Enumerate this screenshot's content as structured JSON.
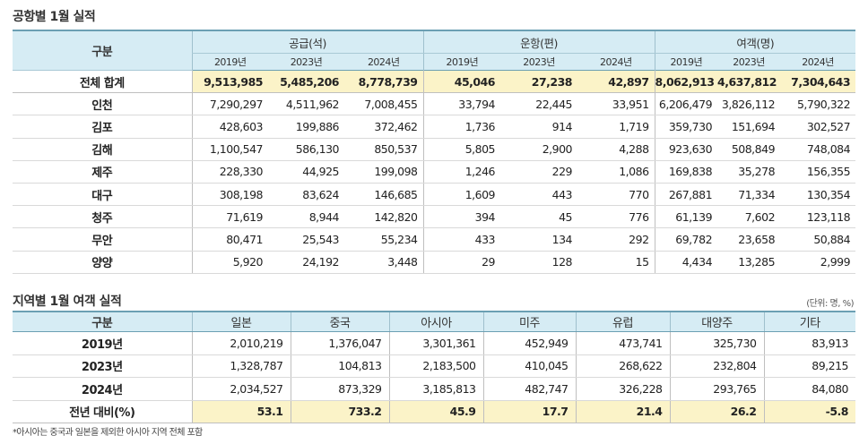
{
  "airport_section": {
    "title": "공항별 1월 실적",
    "corner_label": "구분",
    "groups": [
      "공급(석)",
      "운항(편)",
      "여객(명)"
    ],
    "years": [
      "2019년",
      "2023년",
      "2024년"
    ],
    "rows": [
      {
        "name": "전체 합계",
        "values": [
          "9,513,985",
          "5,485,206",
          "8,778,739",
          "45,046",
          "27,238",
          "42,897",
          "8,062,913",
          "4,637,812",
          "7,304,643"
        ]
      },
      {
        "name": "인천",
        "values": [
          "7,290,297",
          "4,511,962",
          "7,008,455",
          "33,794",
          "22,445",
          "33,951",
          "6,206,479",
          "3,826,112",
          "5,790,322"
        ]
      },
      {
        "name": "김포",
        "values": [
          "428,603",
          "199,886",
          "372,462",
          "1,736",
          "914",
          "1,719",
          "359,730",
          "151,694",
          "302,527"
        ]
      },
      {
        "name": "김해",
        "values": [
          "1,100,547",
          "586,130",
          "850,537",
          "5,805",
          "2,900",
          "4,288",
          "923,630",
          "508,849",
          "748,084"
        ]
      },
      {
        "name": "제주",
        "values": [
          "228,330",
          "44,925",
          "199,098",
          "1,246",
          "229",
          "1,086",
          "169,838",
          "35,278",
          "156,355"
        ]
      },
      {
        "name": "대구",
        "values": [
          "308,198",
          "83,624",
          "146,685",
          "1,609",
          "443",
          "770",
          "267,881",
          "71,334",
          "130,354"
        ]
      },
      {
        "name": "청주",
        "values": [
          "71,619",
          "8,944",
          "142,820",
          "394",
          "45",
          "776",
          "61,139",
          "7,602",
          "123,118"
        ]
      },
      {
        "name": "무안",
        "values": [
          "80,471",
          "25,543",
          "55,234",
          "433",
          "134",
          "292",
          "69,782",
          "23,658",
          "50,884"
        ]
      },
      {
        "name": "양양",
        "values": [
          "5,920",
          "24,192",
          "3,448",
          "29",
          "128",
          "15",
          "4,434",
          "13,285",
          "2,999"
        ]
      }
    ]
  },
  "region_section": {
    "title": "지역별 1월 여객 실적",
    "unit_note": "(단위: 명, %)",
    "corner_label": "구분",
    "columns": [
      "일본",
      "중국",
      "아시아",
      "미주",
      "유럽",
      "대양주",
      "기타"
    ],
    "rows": [
      {
        "name": "2019년",
        "values": [
          "2,010,219",
          "1,376,047",
          "3,301,361",
          "452,949",
          "473,741",
          "325,730",
          "83,913"
        ]
      },
      {
        "name": "2023년",
        "values": [
          "1,328,787",
          "104,813",
          "2,183,500",
          "410,045",
          "268,622",
          "232,804",
          "89,215"
        ]
      },
      {
        "name": "2024년",
        "values": [
          "2,034,527",
          "873,329",
          "3,185,813",
          "482,747",
          "326,228",
          "293,765",
          "84,080"
        ]
      },
      {
        "name": "전년 대비(%)",
        "values": [
          "53.1",
          "733.2",
          "45.9",
          "17.7",
          "21.4",
          "26.2",
          "-5.8"
        ]
      }
    ],
    "footnote": "*아시아는 중국과 일본을 제외한 아시아 지역 전체 포함"
  },
  "colors": {
    "header_bg": "#d6ecf4",
    "highlight_bg": "#fbf3c8",
    "header_border": "#6b9fb3"
  }
}
